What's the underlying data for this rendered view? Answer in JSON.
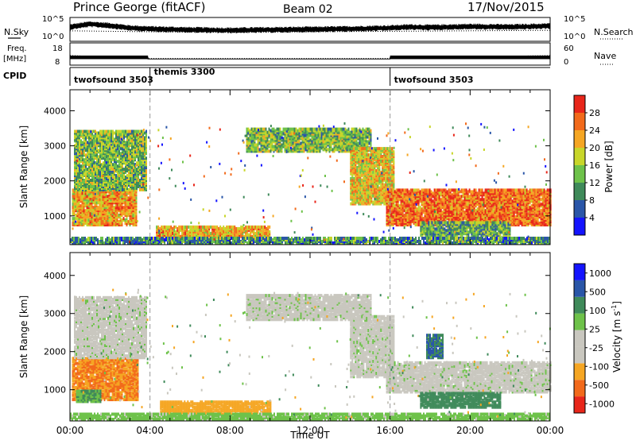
{
  "header": {
    "station": "Prince George (fitACF)",
    "beam": "Beam 02",
    "date": "17/Nov/2015"
  },
  "strip_labels": {
    "nsky": "N.Sky",
    "nsearch": "N.Search",
    "freq_line1": "Freq.",
    "freq_line2": "[MHz]",
    "nave": "Nave",
    "cpid": "CPID",
    "nsky_ticks": [
      "10^5",
      "10^0"
    ],
    "nsearch_ticks": [
      "10^5",
      "10^0"
    ],
    "freq_ticks": [
      "18",
      "8"
    ],
    "nave_ticks": [
      "60",
      "0"
    ]
  },
  "colors": {
    "power": [
      "#1414ff",
      "#2a56a8",
      "#3f8a5a",
      "#6ec24a",
      "#c8d62a",
      "#f5a623",
      "#f26a1b",
      "#e8261a"
    ],
    "velocity": [
      "#e8261a",
      "#f26a1b",
      "#f5a623",
      "#c9c7bf",
      "#c9c7bf",
      "#6ec24a",
      "#3f8a5a",
      "#2a56a8",
      "#1414ff"
    ]
  },
  "chart_data": [
    {
      "type": "line",
      "title": "Prince George (fitACF)  Beam 02  17/Nov/2015",
      "panel": "noise",
      "ylabel_left": "N.Sky",
      "ylabel_right": "N.Search",
      "series": [
        {
          "name": "N.Sky",
          "x": [
            0,
            1,
            2,
            3,
            4,
            6,
            8,
            10,
            12,
            14,
            16,
            17,
            18,
            20,
            22,
            24
          ],
          "y": [
            3.0,
            3.6,
            3.3,
            2.8,
            2.6,
            2.4,
            2.3,
            2.4,
            2.5,
            2.6,
            2.8,
            3.0,
            2.9,
            3.1,
            3.0,
            3.2
          ]
        },
        {
          "name": "N.Search",
          "x": [
            0,
            4,
            8,
            12,
            16,
            20,
            24
          ],
          "y": [
            2.2,
            2.0,
            1.9,
            2.0,
            2.1,
            2.2,
            2.3
          ]
        }
      ],
      "yticks_left": [
        "10^5",
        "10^0"
      ],
      "yticks_right": [
        "10^5",
        "10^0"
      ]
    },
    {
      "type": "line",
      "panel": "frequency",
      "ylabel_left": "Freq. [MHz]",
      "ylabel_right": "Nave",
      "ylim_left": [
        8,
        18
      ],
      "ylim_right": [
        0,
        60
      ],
      "series": [
        {
          "name": "Freq.",
          "x": [
            0,
            3.9,
            3.9,
            16,
            16,
            24
          ],
          "y": [
            11.5,
            11.5,
            10.8,
            10.8,
            11.5,
            11.5
          ]
        },
        {
          "name": "Nave",
          "x": [
            0,
            4,
            16,
            24
          ],
          "y": [
            26,
            18,
            18,
            26
          ]
        }
      ]
    },
    {
      "type": "table",
      "panel": "cpid",
      "label": "CPID",
      "segments": [
        {
          "start": 0,
          "end": 4,
          "name": "twofsound 3503"
        },
        {
          "start": 4,
          "end": 16,
          "name": "themis 3300"
        },
        {
          "start": 16,
          "end": 24,
          "name": "twofsound 3503"
        }
      ]
    },
    {
      "type": "heatmap",
      "panel": "power",
      "xlabel": "",
      "ylabel": "Slant Range [km]",
      "xlim": [
        0,
        24
      ],
      "ylim": [
        180,
        4600
      ],
      "yticks": [
        1000,
        2000,
        3000,
        4000
      ],
      "colorbar": {
        "label": "Power [dB]",
        "ticks": [
          4,
          8,
          12,
          16,
          20,
          24,
          28
        ],
        "range": [
          0,
          32
        ]
      },
      "regions": [
        {
          "t0": 0.1,
          "t1": 3.3,
          "r0": 700,
          "r1": 1700,
          "value": 22
        },
        {
          "t0": 0.2,
          "t1": 3.8,
          "r0": 1700,
          "r1": 3400,
          "value": 14
        },
        {
          "t0": 4.3,
          "t1": 10.0,
          "r0": 320,
          "r1": 650,
          "value": 22
        },
        {
          "t0": 8.8,
          "t1": 15.0,
          "r0": 2800,
          "r1": 3450,
          "value": 14
        },
        {
          "t0": 14.0,
          "t1": 16.2,
          "r0": 1300,
          "r1": 2900,
          "value": 20
        },
        {
          "t0": 15.8,
          "t1": 24.0,
          "r0": 700,
          "r1": 1700,
          "value": 26
        },
        {
          "t0": 17.5,
          "t1": 22.0,
          "r0": 400,
          "r1": 800,
          "value": 12
        },
        {
          "t0": 0.0,
          "t1": 24.0,
          "r0": 180,
          "r1": 330,
          "value": 10
        }
      ]
    },
    {
      "type": "heatmap",
      "panel": "velocity",
      "xlabel": "Time UT",
      "ylabel": "Slant Range [km]",
      "xlim": [
        0,
        24
      ],
      "ylim": [
        180,
        4600
      ],
      "xticks": [
        "00:00",
        "04:00",
        "08:00",
        "12:00",
        "16:00",
        "20:00",
        "00:00"
      ],
      "yticks": [
        1000,
        2000,
        3000,
        4000
      ],
      "colorbar": {
        "label": "Velocity [m s^-1]",
        "ticks": [
          1000,
          500,
          100,
          25,
          -25,
          -100,
          -500,
          -1000
        ]
      },
      "regions": [
        {
          "t0": 0.1,
          "t1": 3.4,
          "r0": 700,
          "r1": 1800,
          "value": -500
        },
        {
          "t0": 0.2,
          "t1": 3.8,
          "r0": 1800,
          "r1": 3400,
          "value": 0
        },
        {
          "t0": 0.3,
          "t1": 1.5,
          "r0": 650,
          "r1": 950,
          "value": 100
        },
        {
          "t0": 4.5,
          "t1": 10.0,
          "r0": 320,
          "r1": 650,
          "value": -300
        },
        {
          "t0": 8.8,
          "t1": 15.0,
          "r0": 2800,
          "r1": 3450,
          "value": 0
        },
        {
          "t0": 14.0,
          "t1": 16.2,
          "r0": 1300,
          "r1": 2900,
          "value": 0
        },
        {
          "t0": 15.8,
          "t1": 24.0,
          "r0": 900,
          "r1": 1700,
          "value": 0
        },
        {
          "t0": 17.5,
          "t1": 21.5,
          "r0": 500,
          "r1": 900,
          "value": 150
        },
        {
          "t0": 17.8,
          "t1": 18.6,
          "r0": 1800,
          "r1": 2400,
          "value": 500
        },
        {
          "t0": 0.0,
          "t1": 24.0,
          "r0": 180,
          "r1": 330,
          "value": 50
        }
      ]
    }
  ]
}
